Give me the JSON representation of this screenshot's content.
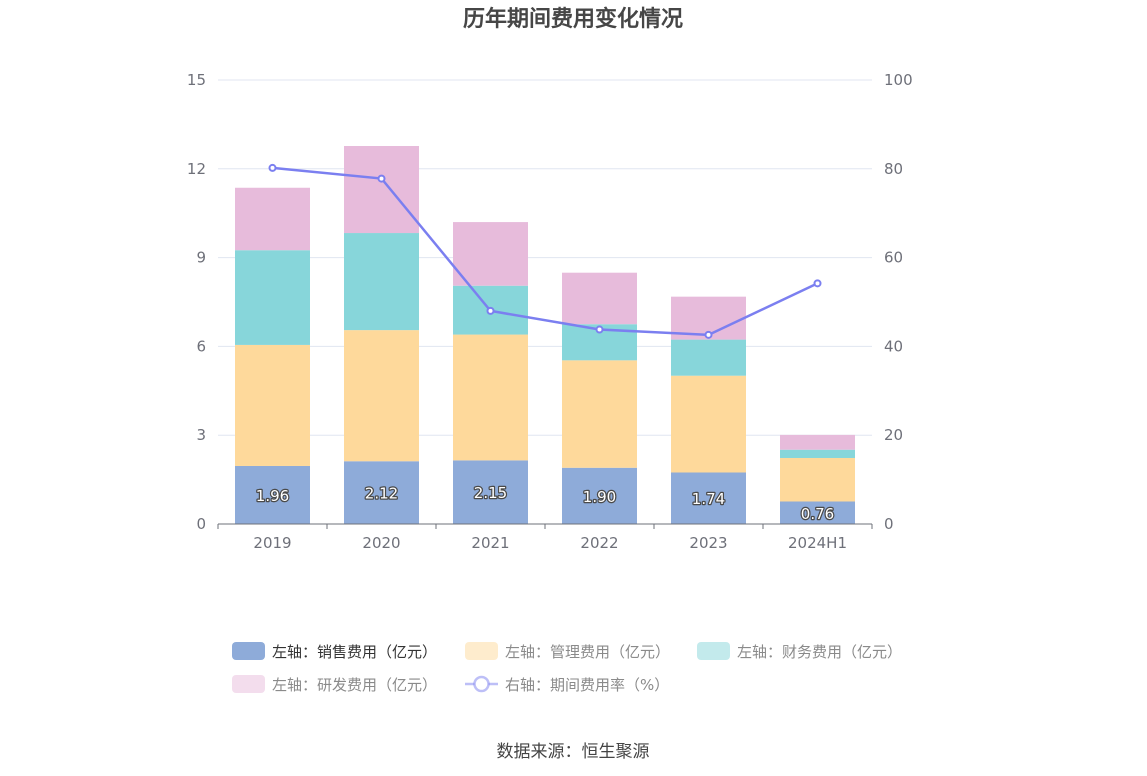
{
  "source_text": "数据来源：恒生聚源",
  "chart_data": {
    "type": "bar",
    "title": "历年期间费用变化情况",
    "categories": [
      "2019",
      "2020",
      "2021",
      "2022",
      "2023",
      "2024H1"
    ],
    "left_axis": {
      "min": 0,
      "max": 15,
      "ticks": [
        0,
        3,
        6,
        9,
        12,
        15
      ]
    },
    "right_axis": {
      "min": 0,
      "max": 100,
      "ticks": [
        0,
        20,
        40,
        60,
        80,
        100
      ]
    },
    "grid": true,
    "legend_position": "bottom",
    "stacked_series": [
      {
        "name": "左轴：销售费用（亿元）",
        "color": "#8eabd9",
        "values": [
          1.96,
          2.12,
          2.15,
          1.9,
          1.74,
          0.76
        ],
        "show_labels": true,
        "labels": [
          "1.96",
          "2.12",
          "2.15",
          "1.90",
          "1.74",
          "0.76"
        ]
      },
      {
        "name": "左轴：管理费用（亿元）",
        "color": "#fed99b",
        "values": [
          4.09,
          4.43,
          4.25,
          3.63,
          3.27,
          1.47
        ],
        "show_labels": false
      },
      {
        "name": "左轴：财务费用（亿元）",
        "color": "#87d6da",
        "values": [
          3.2,
          3.28,
          1.65,
          1.22,
          1.22,
          0.28
        ],
        "show_labels": false
      },
      {
        "name": "左轴：研发费用（亿元）",
        "color": "#e7bbdb",
        "values": [
          2.11,
          2.94,
          2.15,
          1.74,
          1.45,
          0.5
        ],
        "show_labels": false
      }
    ],
    "line_series": {
      "name": "右轴：期间费用率（%）",
      "color": "#7b7ff0",
      "axis": "right",
      "values": [
        80.2,
        77.8,
        48.0,
        43.8,
        42.6,
        54.2
      ]
    }
  }
}
